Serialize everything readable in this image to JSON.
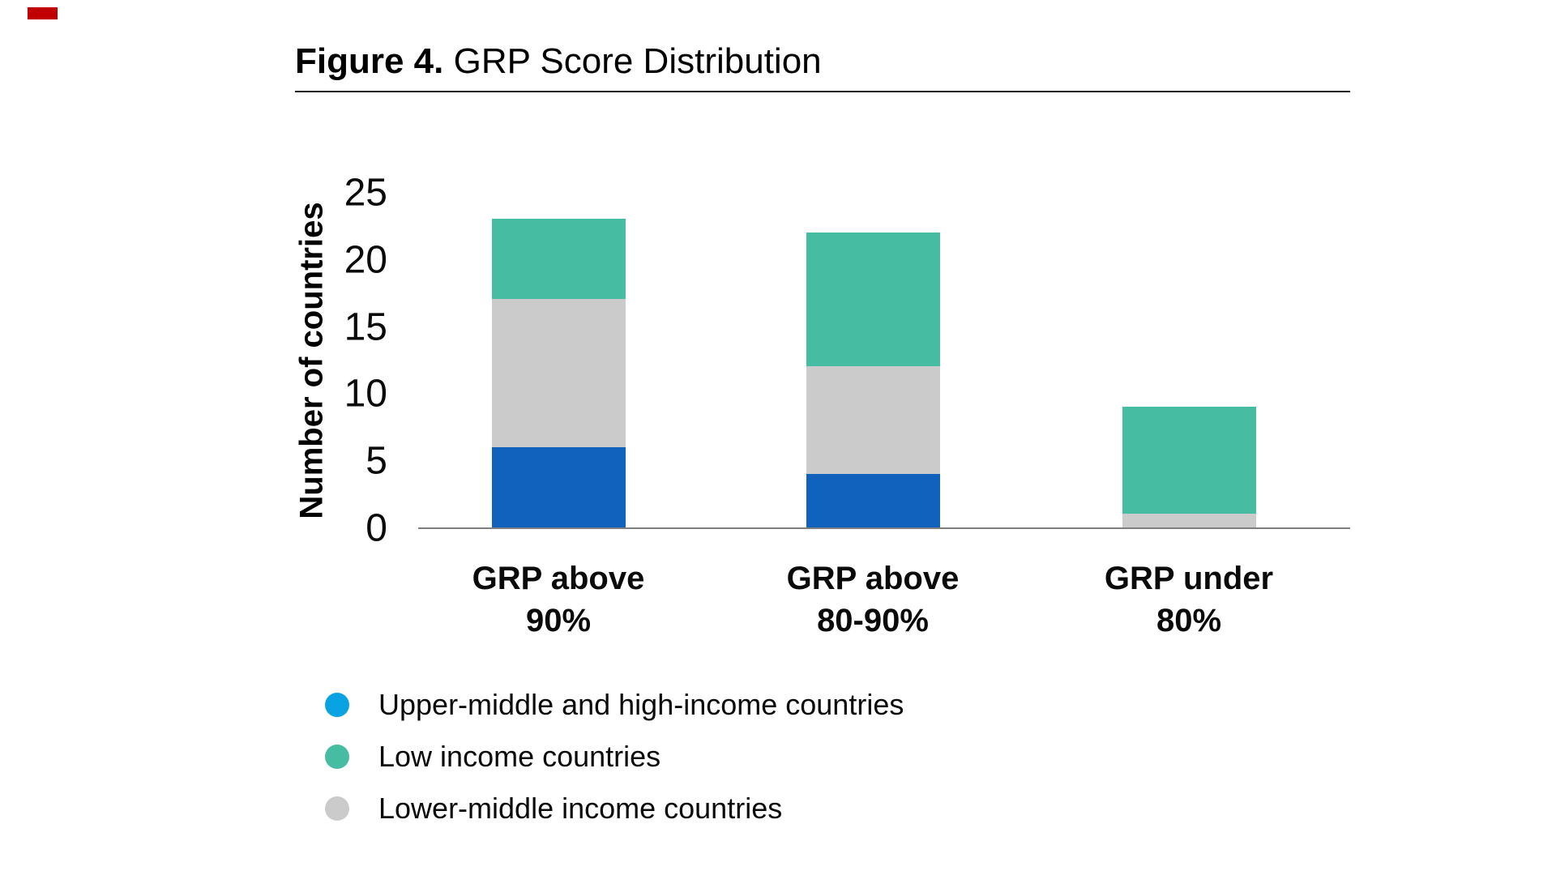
{
  "corner_mark": {
    "color": "#c00000"
  },
  "figure": {
    "title_prefix": "Figure 4.",
    "title_text": " GRP Score Distribution"
  },
  "chart_data": {
    "type": "bar",
    "stacked": true,
    "title": "Figure 4. GRP Score Distribution",
    "categories": [
      "GRP above\n90%",
      "GRP above\n80-90%",
      "GRP under\n80%"
    ],
    "series": [
      {
        "name": "Upper-middle and high-income countries",
        "color": "#1062bc",
        "values": [
          6,
          4,
          0
        ]
      },
      {
        "name": "Lower-middle income countries",
        "color": "#cbcbcb",
        "values": [
          11,
          8,
          1
        ]
      },
      {
        "name": "Low income countries",
        "color": "#46bca2",
        "values": [
          6,
          10,
          8
        ]
      }
    ],
    "ylabel": "Number of countries",
    "xlabel": "",
    "yticks": [
      0,
      5,
      10,
      15,
      20,
      25
    ],
    "ylim": [
      0,
      25
    ],
    "grid": false,
    "legend_position": "bottom-left",
    "legend": [
      {
        "label": "Upper-middle and high-income countries",
        "color": "#09a3e3"
      },
      {
        "label": "Low income countries",
        "color": "#46bca2"
      },
      {
        "label": "Lower-middle income countries",
        "color": "#cbcbcb"
      }
    ],
    "axis_color": "#7f7f7f"
  }
}
